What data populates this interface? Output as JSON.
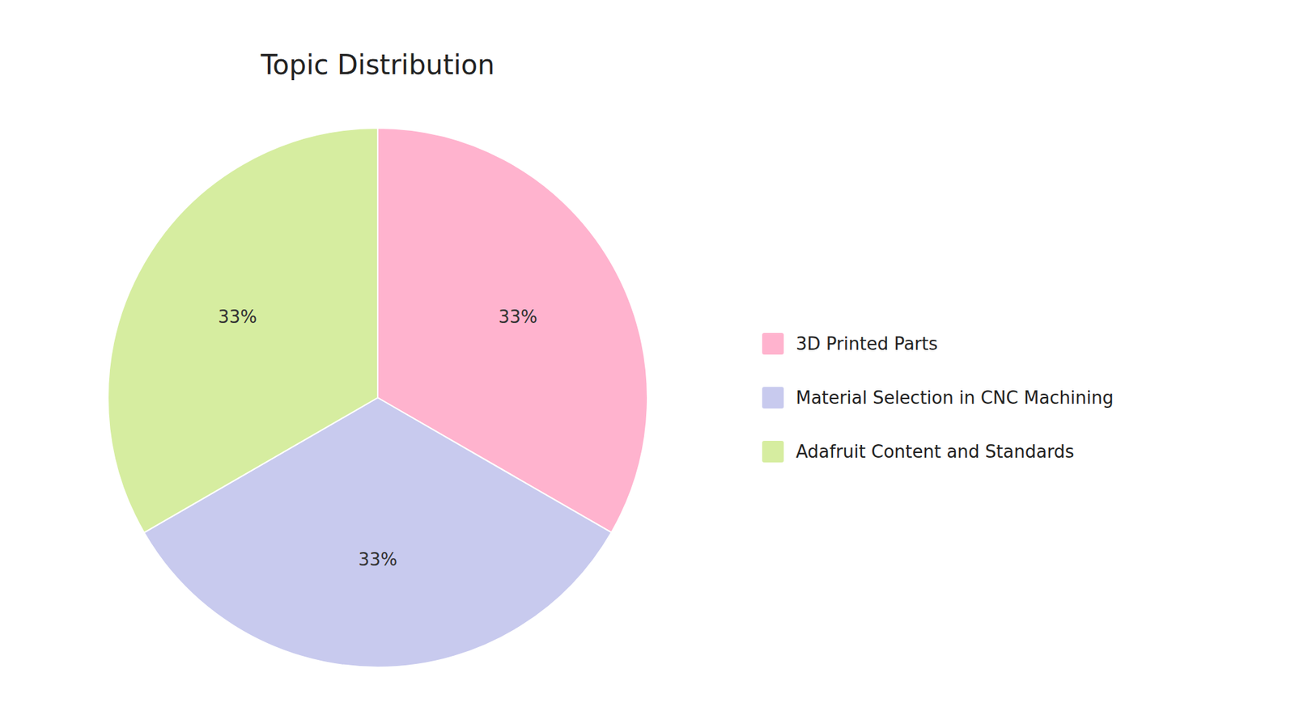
{
  "chart_data": {
    "type": "pie",
    "title": "Topic Distribution",
    "categories": [
      "3D Printed Parts",
      "Material Selection in CNC Machining",
      "Adafruit Content and Standards"
    ],
    "values": [
      33.33,
      33.33,
      33.34
    ],
    "value_labels": [
      "33%",
      "33%",
      "33%"
    ],
    "colors": [
      "#FFB3CE",
      "#C8CAEE",
      "#D6EDA0"
    ],
    "data_labels": true,
    "legend": "right"
  }
}
